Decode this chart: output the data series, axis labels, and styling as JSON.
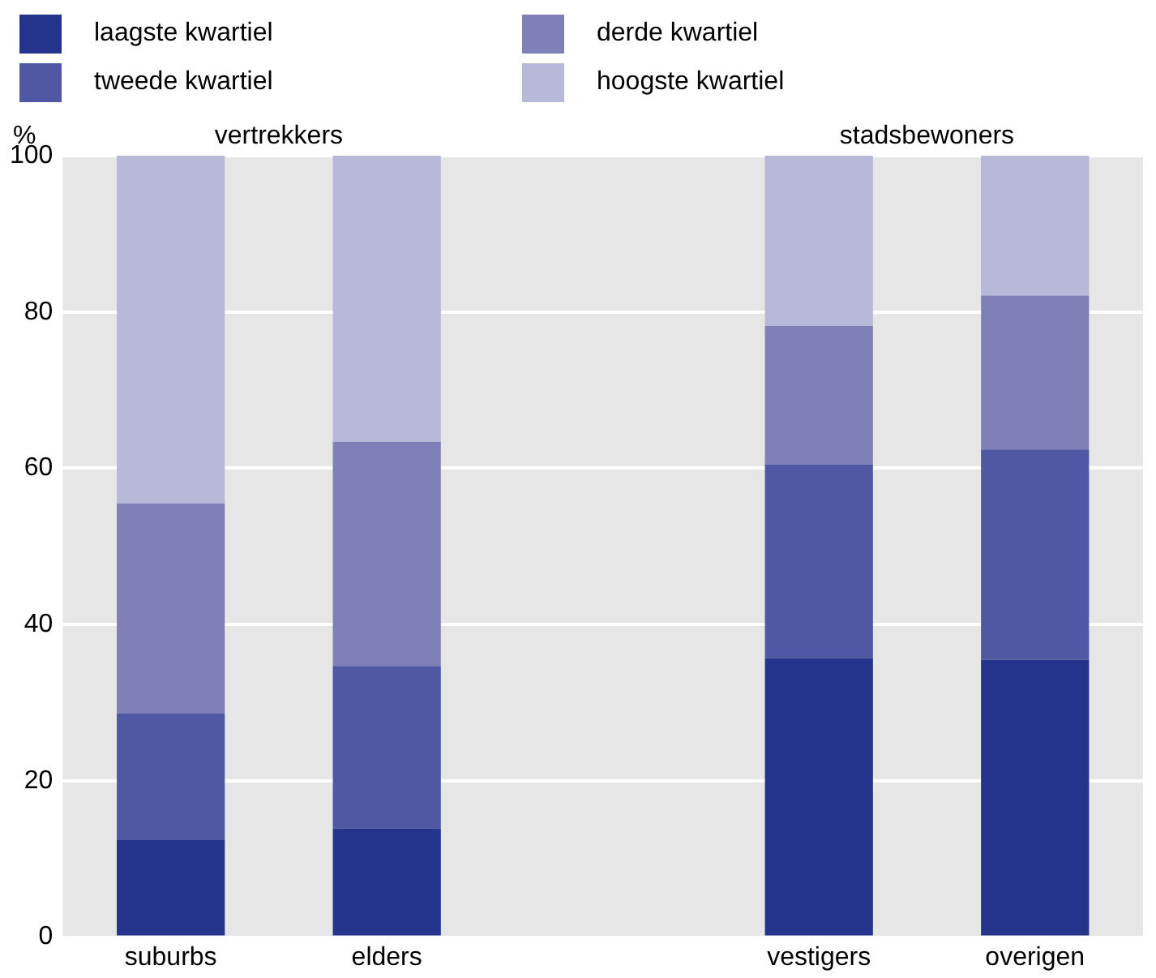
{
  "chart_data": {
    "type": "bar",
    "stacked": true,
    "ylabel": "%",
    "categories": [
      "suburbs",
      "elders",
      null,
      "vestigers",
      "overigen"
    ],
    "series": [
      {
        "name": "laagste kwartiel",
        "color": "#24338c",
        "values": [
          12.4,
          13.9,
          null,
          35.7,
          35.5
        ]
      },
      {
        "name": "tweede kwartiel",
        "color": "#5158a3",
        "values": [
          16.2,
          20.8,
          null,
          24.8,
          26.9
        ]
      },
      {
        "name": "derde kwartiel",
        "color": "#8080b8",
        "values": [
          26.9,
          28.7,
          null,
          17.7,
          19.7
        ]
      },
      {
        "name": "hoogste kwartiel",
        "color": "#b8b8d9",
        "values": [
          44.5,
          36.6,
          null,
          21.8,
          17.9
        ]
      }
    ],
    "ylim": [
      0,
      100
    ],
    "yticks": [
      0,
      20,
      40,
      60,
      80,
      100
    ],
    "grid": "y",
    "legend": "top",
    "annotations": [
      "vertrekkers",
      "stadsbewoners"
    ]
  }
}
